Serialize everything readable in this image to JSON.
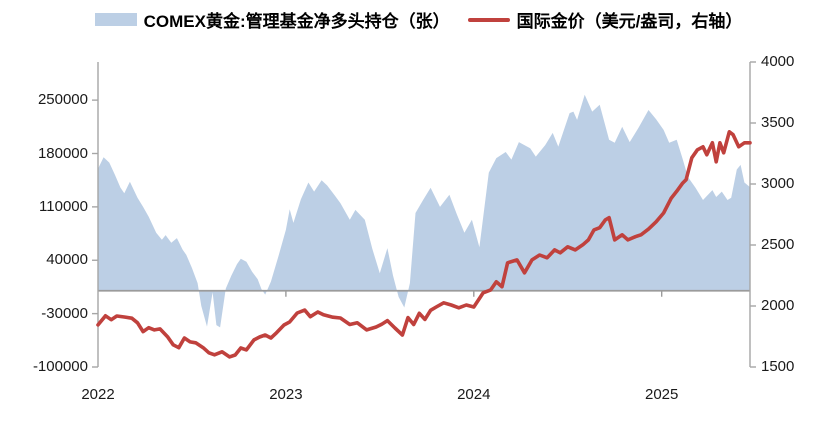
{
  "legend": [
    {
      "label": "COMEX黄金:管理基金净多头持仓（张）",
      "color": "#bccfe5",
      "type": "area"
    },
    {
      "label": "国际金价（美元/盎司，右轴）",
      "color": "#c0413d",
      "type": "line"
    }
  ],
  "colors": {
    "area_fill": "#bccfe5",
    "line": "#c0413d",
    "axis": "#a6a6a6",
    "zero_line": "#9b9b9b",
    "text": "#1a1a1a",
    "background": "#ffffff"
  },
  "chart_data": {
    "type": "combo",
    "title": "",
    "grid": false,
    "legend_position": "top",
    "x_axis": {
      "labels": [
        "2022",
        "2023",
        "2024",
        "2025"
      ],
      "label_positions": [
        2022,
        2023,
        2024,
        2025
      ],
      "range": [
        2022.0,
        2025.47
      ],
      "year_ticks": [
        2023,
        2024,
        2025
      ]
    },
    "y_left": {
      "title": "COMEX黄金:管理基金净多头持仓（张）",
      "ticks": [
        -100000,
        -30000,
        40000,
        110000,
        180000,
        250000
      ],
      "range": [
        -100000,
        300000
      ]
    },
    "y_right": {
      "title": "国际金价（美元/盎司，右轴）",
      "ticks": [
        1500,
        2000,
        2500,
        3000,
        3500,
        4000
      ],
      "range": [
        1500,
        4000
      ]
    },
    "series": [
      {
        "name": "COMEX黄金:管理基金净多头持仓（张）",
        "type": "area",
        "axis": "left",
        "color": "#bccfe5",
        "x": [
          2022.0,
          2022.03,
          2022.06,
          2022.09,
          2022.12,
          2022.14,
          2022.17,
          2022.21,
          2022.24,
          2022.27,
          2022.31,
          2022.34,
          2022.36,
          2022.39,
          2022.42,
          2022.45,
          2022.47,
          2022.5,
          2022.53,
          2022.55,
          2022.58,
          2022.61,
          2022.63,
          2022.65,
          2022.68,
          2022.71,
          2022.74,
          2022.76,
          2022.79,
          2022.82,
          2022.85,
          2022.87,
          2022.89,
          2022.92,
          2022.96,
          2023.0,
          2023.02,
          2023.04,
          2023.08,
          2023.12,
          2023.15,
          2023.19,
          2023.22,
          2023.26,
          2023.29,
          2023.34,
          2023.37,
          2023.42,
          2023.46,
          2023.5,
          2023.54,
          2023.57,
          2023.6,
          2023.63,
          2023.66,
          2023.69,
          2023.73,
          2023.77,
          2023.82,
          2023.87,
          2023.91,
          2023.95,
          2023.99,
          2024.03,
          2024.08,
          2024.12,
          2024.17,
          2024.2,
          2024.24,
          2024.3,
          2024.33,
          2024.38,
          2024.42,
          2024.45,
          2024.51,
          2024.53,
          2024.55,
          2024.59,
          2024.63,
          2024.67,
          2024.72,
          2024.75,
          2024.79,
          2024.83,
          2024.88,
          2024.93,
          2024.97,
          2025.01,
          2025.04,
          2025.08,
          2025.11,
          2025.14,
          2025.18,
          2025.22,
          2025.27,
          2025.29,
          2025.32,
          2025.35,
          2025.37,
          2025.4,
          2025.42,
          2025.44,
          2025.47
        ],
        "values": [
          160000,
          175000,
          168000,
          152000,
          135000,
          128000,
          143000,
          122000,
          110000,
          97000,
          76000,
          67000,
          73000,
          63000,
          69000,
          54000,
          47000,
          30000,
          10000,
          -20000,
          -47000,
          -2000,
          -45000,
          -48000,
          3000,
          20000,
          35000,
          42000,
          38000,
          25000,
          15000,
          2000,
          -5000,
          12000,
          45000,
          80000,
          107000,
          89000,
          120000,
          142000,
          130000,
          145000,
          138000,
          125000,
          115000,
          93000,
          106000,
          93000,
          55000,
          23000,
          56000,
          20000,
          -8000,
          -22000,
          10000,
          102000,
          119000,
          135000,
          110000,
          126000,
          100000,
          76000,
          93000,
          57000,
          155000,
          174000,
          182000,
          172000,
          195000,
          187000,
          176000,
          191000,
          207000,
          189000,
          233000,
          235000,
          224000,
          257000,
          235000,
          244000,
          198000,
          194000,
          215000,
          195000,
          215000,
          237000,
          225000,
          211000,
          194000,
          198000,
          174000,
          149000,
          135000,
          119000,
          132000,
          123000,
          130000,
          119000,
          122000,
          159000,
          165000,
          142000,
          136000
        ]
      },
      {
        "name": "国际金价（美元/盎司，右轴）",
        "type": "line",
        "axis": "right",
        "color": "#c0413d",
        "x": [
          2022.0,
          2022.04,
          2022.07,
          2022.1,
          2022.14,
          2022.18,
          2022.21,
          2022.24,
          2022.27,
          2022.3,
          2022.33,
          2022.37,
          2022.4,
          2022.43,
          2022.46,
          2022.49,
          2022.52,
          2022.56,
          2022.59,
          2022.62,
          2022.66,
          2022.7,
          2022.73,
          2022.76,
          2022.79,
          2022.83,
          2022.86,
          2022.89,
          2022.92,
          2022.95,
          2022.99,
          2023.02,
          2023.06,
          2023.1,
          2023.13,
          2023.17,
          2023.2,
          2023.25,
          2023.29,
          2023.34,
          2023.38,
          2023.43,
          2023.48,
          2023.51,
          2023.54,
          2023.58,
          2023.62,
          2023.65,
          2023.68,
          2023.71,
          2023.74,
          2023.77,
          2023.8,
          2023.84,
          2023.88,
          2023.92,
          2023.96,
          2024.0,
          2024.05,
          2024.09,
          2024.12,
          2024.15,
          2024.18,
          2024.23,
          2024.27,
          2024.31,
          2024.35,
          2024.39,
          2024.43,
          2024.46,
          2024.5,
          2024.54,
          2024.58,
          2024.61,
          2024.64,
          2024.67,
          2024.7,
          2024.72,
          2024.75,
          2024.79,
          2024.82,
          2024.86,
          2024.89,
          2024.93,
          2024.97,
          2025.01,
          2025.05,
          2025.08,
          2025.11,
          2025.13,
          2025.16,
          2025.19,
          2025.22,
          2025.24,
          2025.27,
          2025.29,
          2025.31,
          2025.33,
          2025.36,
          2025.38,
          2025.41,
          2025.44,
          2025.47
        ],
        "values": [
          1845,
          1920,
          1888,
          1918,
          1910,
          1900,
          1862,
          1790,
          1822,
          1804,
          1812,
          1748,
          1682,
          1658,
          1738,
          1706,
          1698,
          1658,
          1616,
          1600,
          1625,
          1583,
          1598,
          1656,
          1640,
          1722,
          1746,
          1762,
          1738,
          1780,
          1844,
          1870,
          1943,
          1966,
          1912,
          1951,
          1928,
          1908,
          1902,
          1848,
          1862,
          1804,
          1828,
          1850,
          1880,
          1820,
          1762,
          1905,
          1848,
          1940,
          1890,
          1965,
          1992,
          2026,
          2008,
          1985,
          2008,
          1992,
          2108,
          2132,
          2198,
          2158,
          2354,
          2378,
          2272,
          2378,
          2418,
          2395,
          2460,
          2436,
          2485,
          2460,
          2502,
          2542,
          2624,
          2642,
          2706,
          2724,
          2542,
          2584,
          2542,
          2568,
          2584,
          2630,
          2690,
          2762,
          2882,
          2940,
          3005,
          3035,
          3215,
          3280,
          3305,
          3240,
          3338,
          3182,
          3338,
          3256,
          3428,
          3404,
          3305,
          3338,
          3338
        ]
      }
    ]
  }
}
